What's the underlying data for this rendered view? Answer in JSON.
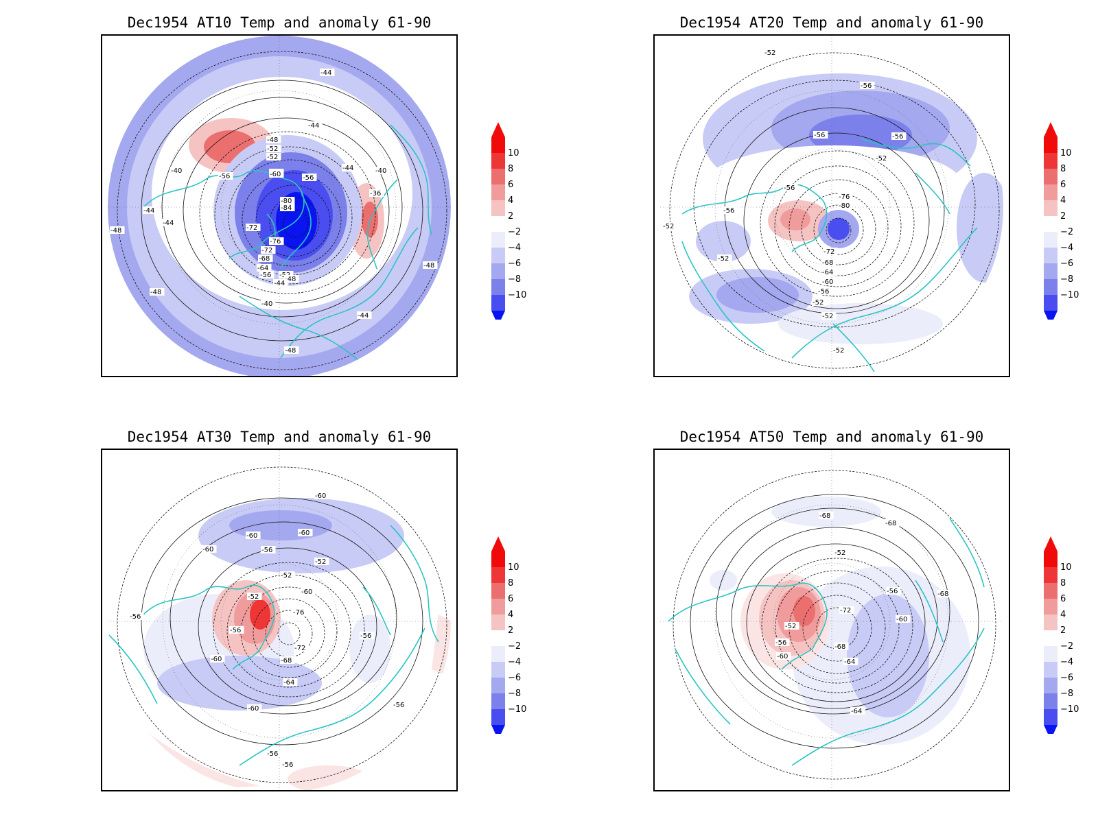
{
  "colors": {
    "coast": "#2bc4c4",
    "contour": "#111111",
    "neg": [
      "#ecedfb",
      "#c8cbf5",
      "#a4a8ef",
      "#7b80ea",
      "#4a4ef0",
      "#0a14f0"
    ],
    "pos": [
      "#fbe4e4",
      "#f6c3c3",
      "#f19c9c",
      "#ec6f6f",
      "#ee3636",
      "#f00a0a"
    ]
  },
  "colorbar": {
    "ticks": [
      "10",
      "8",
      "6",
      "4",
      "2",
      "−2",
      "−4",
      "−6",
      "−8",
      "−10"
    ]
  },
  "panels": [
    {
      "title": "Dec1954 AT10 Temp and anomaly 61-90",
      "labels": [
        "-44",
        "-44",
        "-48",
        "-52",
        "-52",
        "-56",
        "-60",
        "-56",
        "-44",
        "-40",
        "-40",
        "-56",
        "-80",
        "-84",
        "-36",
        "-44",
        "-44",
        "-48",
        "-72",
        "-76",
        "-72",
        "-68",
        "-64",
        "-56",
        "-52",
        "-48",
        "-44",
        "-48",
        "-48",
        "-40",
        "-44",
        "-48"
      ]
    },
    {
      "title": "Dec1954 AT20 Temp and anomaly 61-90",
      "labels": [
        "-52",
        "-56",
        "-56",
        "-56",
        "-52",
        "-56",
        "-76",
        "-80",
        "-56",
        "-52",
        "-52",
        "-72",
        "-68",
        "-64",
        "-60",
        "-56",
        "-52",
        "-52",
        "-52"
      ]
    },
    {
      "title": "Dec1954 AT30 Temp and anomaly 61-90",
      "labels": [
        "-60",
        "-60",
        "-60",
        "-60",
        "-56",
        "-52",
        "-52",
        "-60",
        "-52",
        "-76",
        "-56",
        "-56",
        "-56",
        "-72",
        "-60",
        "-68",
        "-64",
        "-60",
        "-56",
        "-56",
        "-56"
      ]
    },
    {
      "title": "Dec1954 AT50 Temp and anomaly 61-90",
      "labels": [
        "-68",
        "-68",
        "-52",
        "-56",
        "-68",
        "-72",
        "-60",
        "-52",
        "-56",
        "-60",
        "-68",
        "-64",
        "-64"
      ]
    }
  ]
}
